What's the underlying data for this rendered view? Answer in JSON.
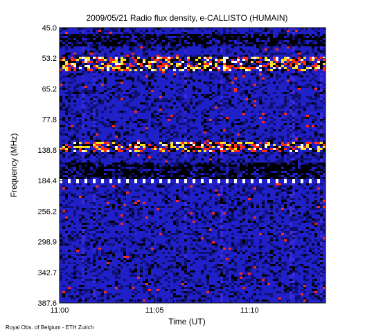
{
  "chart_data": {
    "type": "heatmap",
    "title": "2009/05/21  Radio flux density, e-CALLISTO (HUMAIN)",
    "xlabel": "Time (UT)",
    "ylabel": "Frequency (MHz)",
    "credit": "Royal Obs. of Belgium - ETH Zurich",
    "x_ticks": [
      "11:00",
      "11:05",
      "11:10"
    ],
    "y_ticks": [
      "45.0",
      "53.2",
      "65.2",
      "77.8",
      "138.8",
      "184.4",
      "256.2",
      "298.9",
      "342.7",
      "387.6"
    ],
    "xlim": [
      "11:00",
      "11:14"
    ],
    "ylim_mhz": [
      45.0,
      387.6
    ],
    "y_axis_inverted": true,
    "colorscale": [
      "#000000",
      "#101070",
      "#2020c8",
      "#3a2ad8",
      "#ff2a10",
      "#ffe028",
      "#ffffff"
    ],
    "features": [
      {
        "name": "bright band",
        "freq_mhz_range": [
          53.2,
          58.0
        ],
        "intensity": "high"
      },
      {
        "name": "dark band",
        "freq_mhz_range": [
          47.0,
          50.0
        ],
        "intensity": "low"
      },
      {
        "name": "bright band",
        "freq_mhz_range": [
          125.0,
          140.0
        ],
        "intensity": "high"
      },
      {
        "name": "dark band",
        "freq_mhz_range": [
          160.0,
          180.0
        ],
        "intensity": "low"
      },
      {
        "name": "interference line",
        "freq_mhz": 184.4,
        "intensity": "high"
      }
    ]
  }
}
